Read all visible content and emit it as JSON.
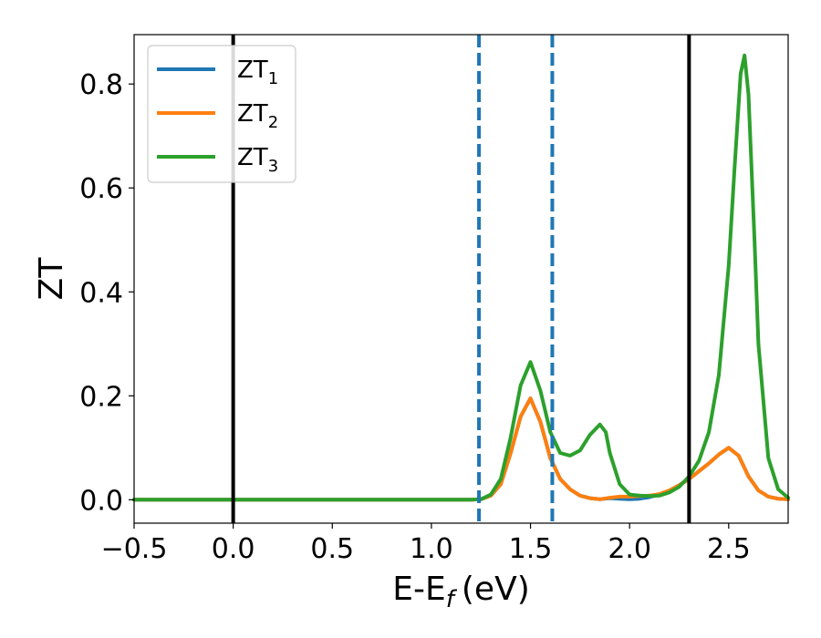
{
  "chart_data": {
    "type": "line",
    "xlabel": "E-E",
    "xlabel_sub": "f",
    "xlabel_unit": "(eV)",
    "ylabel": "ZT",
    "xlim": [
      -0.5,
      2.8
    ],
    "ylim": [
      -0.045,
      0.895
    ],
    "xticks": [
      -0.5,
      0.0,
      0.5,
      1.0,
      1.5,
      2.0,
      2.5
    ],
    "xtick_labels": [
      "−0.5",
      "0.0",
      "0.5",
      "1.0",
      "1.5",
      "2.0",
      "2.5"
    ],
    "yticks": [
      0.0,
      0.2,
      0.4,
      0.6,
      0.8
    ],
    "ytick_labels": [
      "0.0",
      "0.2",
      "0.4",
      "0.6",
      "0.8"
    ],
    "grid": false,
    "legend_position": "top-left",
    "series": [
      {
        "name": "ZT",
        "name_sub": "1",
        "color": "#1f77b4",
        "x": [
          -0.5,
          0.0,
          0.5,
          1.0,
          1.2,
          1.25,
          1.3,
          1.35,
          1.4,
          1.45,
          1.5,
          1.55,
          1.6,
          1.65,
          1.7,
          1.75,
          1.8,
          1.85,
          1.9,
          1.95,
          2.0,
          2.05,
          2.1,
          2.15,
          2.2,
          2.25,
          2.3,
          2.35,
          2.4,
          2.45,
          2.5,
          2.55,
          2.6,
          2.65,
          2.7,
          2.75,
          2.8
        ],
        "y": [
          0,
          0,
          0,
          0,
          0,
          0.001,
          0.008,
          0.03,
          0.09,
          0.16,
          0.195,
          0.15,
          0.08,
          0.04,
          0.02,
          0.008,
          0.003,
          0.001,
          0.003,
          0.002,
          0.001,
          0.002,
          0.005,
          0.01,
          0.017,
          0.028,
          0.04,
          0.055,
          0.07,
          0.087,
          0.1,
          0.085,
          0.045,
          0.018,
          0.006,
          0.002,
          0.001
        ]
      },
      {
        "name": "ZT",
        "name_sub": "2",
        "color": "#ff7f0e",
        "x": [
          -0.5,
          0.0,
          0.5,
          1.0,
          1.2,
          1.25,
          1.3,
          1.35,
          1.4,
          1.45,
          1.5,
          1.55,
          1.6,
          1.65,
          1.7,
          1.75,
          1.8,
          1.85,
          1.9,
          1.95,
          2.0,
          2.05,
          2.1,
          2.15,
          2.2,
          2.25,
          2.3,
          2.35,
          2.4,
          2.45,
          2.5,
          2.55,
          2.6,
          2.65,
          2.7,
          2.75,
          2.8
        ],
        "y": [
          0,
          0,
          0,
          0,
          0,
          0.001,
          0.008,
          0.03,
          0.09,
          0.16,
          0.195,
          0.15,
          0.08,
          0.04,
          0.02,
          0.008,
          0.003,
          0.001,
          0.004,
          0.006,
          0.006,
          0.007,
          0.008,
          0.011,
          0.018,
          0.028,
          0.04,
          0.055,
          0.07,
          0.087,
          0.1,
          0.085,
          0.045,
          0.018,
          0.006,
          0.002,
          0.001
        ]
      },
      {
        "name": "ZT",
        "name_sub": "3",
        "color": "#2ca02c",
        "x": [
          -0.5,
          0.0,
          0.5,
          1.0,
          1.2,
          1.25,
          1.3,
          1.35,
          1.4,
          1.45,
          1.5,
          1.55,
          1.6,
          1.65,
          1.7,
          1.75,
          1.8,
          1.85,
          1.88,
          1.9,
          1.95,
          2.0,
          2.05,
          2.1,
          2.15,
          2.2,
          2.25,
          2.3,
          2.35,
          2.4,
          2.45,
          2.5,
          2.53,
          2.56,
          2.58,
          2.6,
          2.63,
          2.65,
          2.7,
          2.75,
          2.8
        ],
        "y": [
          0,
          0,
          0,
          0,
          0,
          0.001,
          0.01,
          0.04,
          0.12,
          0.22,
          0.265,
          0.21,
          0.13,
          0.09,
          0.085,
          0.095,
          0.125,
          0.145,
          0.13,
          0.09,
          0.03,
          0.01,
          0.008,
          0.007,
          0.008,
          0.014,
          0.025,
          0.045,
          0.075,
          0.13,
          0.24,
          0.45,
          0.64,
          0.82,
          0.855,
          0.78,
          0.5,
          0.3,
          0.08,
          0.02,
          0.004
        ]
      }
    ],
    "vlines": [
      {
        "x": 0.0,
        "color": "#000000",
        "style": "solid"
      },
      {
        "x": 2.3,
        "color": "#000000",
        "style": "solid"
      },
      {
        "x": 1.24,
        "color": "#1f77b4",
        "style": "dashed"
      },
      {
        "x": 1.61,
        "color": "#1f77b4",
        "style": "dashed"
      }
    ]
  }
}
